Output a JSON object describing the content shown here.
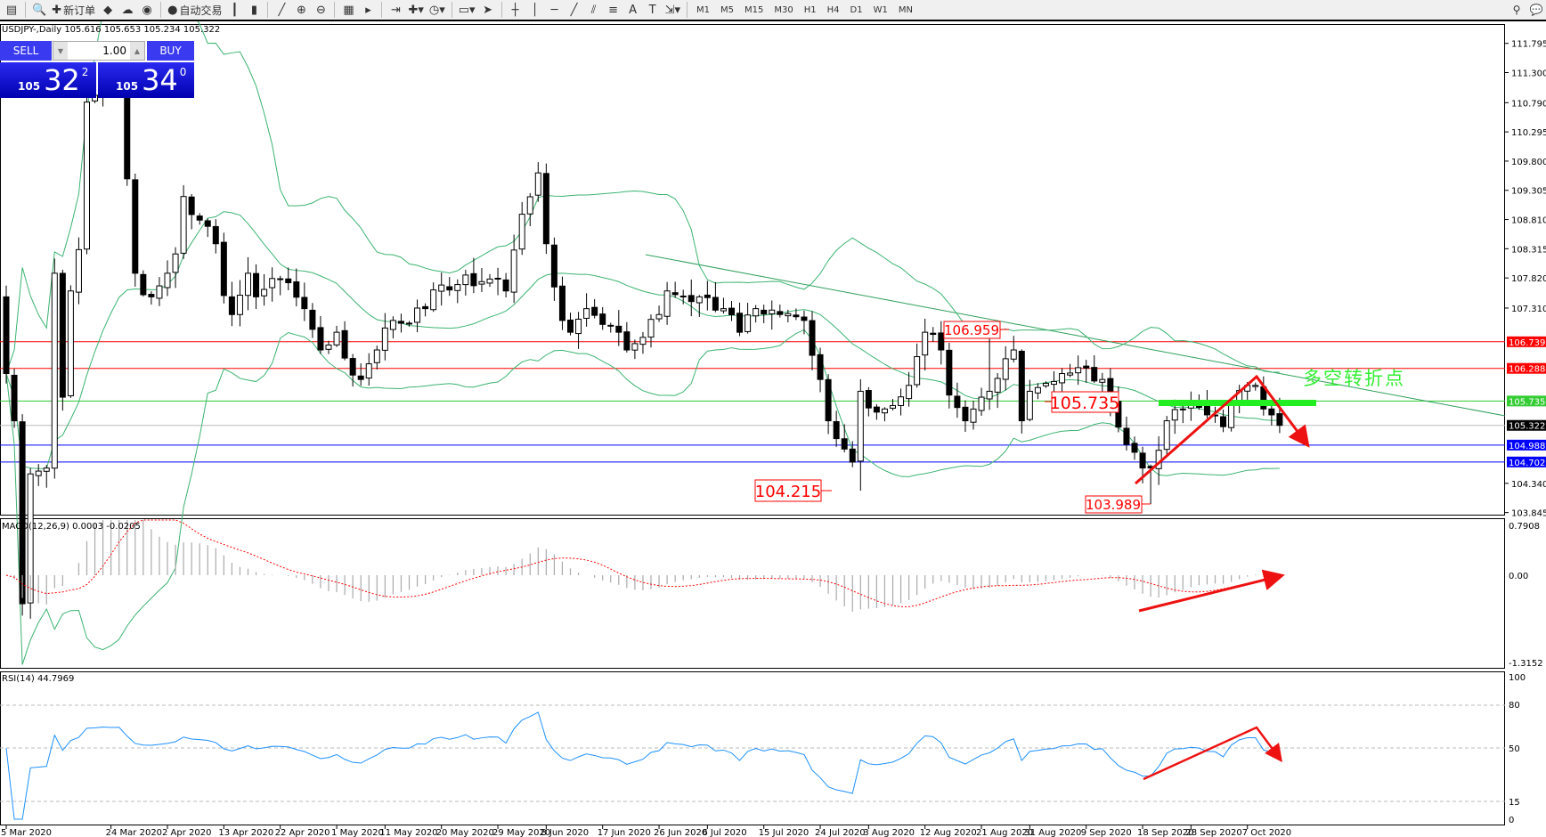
{
  "toolbar": {
    "new_order": "新订单",
    "auto_trading": "自动交易",
    "icons": [
      "chart-window-icon",
      "zoom-doc-icon",
      "new-order-icon",
      "gold-icon",
      "signals-icon",
      "radio-icon",
      "auto-trading-icon",
      "bar-chart-icon",
      "candle-chart-icon",
      "line-chart-icon",
      "zoom-in-icon",
      "zoom-out-icon",
      "tile-icon",
      "autoscroll-icon",
      "chart-shift-icon",
      "indicators-icon",
      "periods-icon",
      "templates-icon",
      "cursor-icon",
      "crosshair-icon",
      "vertical-line-icon",
      "horizontal-line-icon",
      "trendline-icon",
      "equidistant-channel-icon",
      "fibo-icon",
      "text-icon",
      "text-label-icon",
      "arrows-icon"
    ],
    "timeframes": [
      "M1",
      "M5",
      "M15",
      "M30",
      "H1",
      "H4",
      "D1",
      "W1",
      "MN"
    ],
    "search_icon": "search-icon",
    "chat_icon": "chat-icon"
  },
  "symbol_info": "USDJPY-,Daily  105.616 105.653 105.234 105.322",
  "one_click": {
    "sell_label": "SELL",
    "buy_label": "BUY",
    "lot": "1.00",
    "sell_big": "105",
    "sell_pips": "32",
    "sell_frac": "2",
    "buy_big": "105",
    "buy_pips": "34",
    "buy_frac": "0",
    "sell_color": "#0000c8",
    "buy_color": "#0000c8"
  },
  "chart": {
    "price_ticks": [
      "111.795",
      "111.300",
      "110.790",
      "110.295",
      "109.800",
      "109.305",
      "108.810",
      "108.315",
      "107.820",
      "107.310",
      "104.340",
      "103.845"
    ],
    "levels": [
      {
        "value": "106.739",
        "color": "#ff0000"
      },
      {
        "value": "106.288",
        "color": "#ff0000"
      },
      {
        "value": "105.735",
        "color": "#33cc33"
      },
      {
        "value": "105.322",
        "color": "#000000"
      },
      {
        "value": "104.988",
        "color": "#0000ff"
      },
      {
        "value": "104.702",
        "color": "#0000ff"
      }
    ],
    "annotations": {
      "high_label": "106.959",
      "mid_label": "105.735",
      "low1_label": "104.215",
      "low2_label": "103.989",
      "turning_point": "多空转折点"
    },
    "marked_extremes": [
      {
        "date": "2020-07-31",
        "low": 104.215
      },
      {
        "date": "2020-09-21",
        "low": 103.989
      },
      {
        "date": "2020-08-24",
        "high": 106.959
      }
    ],
    "price_keypoints": [
      [
        "2020-03-05",
        106.2
      ],
      [
        "2020-03-06",
        105.4
      ],
      [
        "2020-03-09",
        102.3
      ],
      [
        "2020-03-10",
        104.5
      ],
      [
        "2020-03-12",
        104.6
      ],
      [
        "2020-03-13",
        107.9
      ],
      [
        "2020-03-16",
        105.8
      ],
      [
        "2020-03-17",
        107.6
      ],
      [
        "2020-03-18",
        108.3
      ],
      [
        "2020-03-19",
        110.8
      ],
      [
        "2020-03-23",
        111.2
      ],
      [
        "2020-03-25",
        111.2
      ],
      [
        "2020-03-26",
        109.5
      ],
      [
        "2020-03-27",
        107.9
      ],
      [
        "2020-03-31",
        107.5
      ],
      [
        "2020-04-02",
        107.9
      ],
      [
        "2020-04-06",
        109.2
      ],
      [
        "2020-04-08",
        108.8
      ],
      [
        "2020-04-10",
        108.4
      ],
      [
        "2020-04-14",
        107.2
      ],
      [
        "2020-04-16",
        107.9
      ],
      [
        "2020-04-17",
        107.5
      ],
      [
        "2020-04-22",
        107.8
      ],
      [
        "2020-04-27",
        107.3
      ],
      [
        "2020-04-29",
        106.6
      ],
      [
        "2020-05-01",
        106.9
      ],
      [
        "2020-05-06",
        106.1
      ],
      [
        "2020-05-08",
        106.6
      ],
      [
        "2020-05-12",
        107.1
      ],
      [
        "2020-05-18",
        107.3
      ],
      [
        "2020-05-20",
        107.7
      ],
      [
        "2020-05-29",
        107.8
      ],
      [
        "2020-06-01",
        107.6
      ],
      [
        "2020-06-03",
        108.9
      ],
      [
        "2020-06-05",
        109.6
      ],
      [
        "2020-06-08",
        108.4
      ],
      [
        "2020-06-10",
        107.1
      ],
      [
        "2020-06-11",
        106.9
      ],
      [
        "2020-06-15",
        107.3
      ],
      [
        "2020-06-19",
        106.9
      ],
      [
        "2020-06-22",
        106.6
      ],
      [
        "2020-06-26",
        107.2
      ],
      [
        "2020-06-29",
        107.6
      ],
      [
        "2020-07-03",
        107.5
      ],
      [
        "2020-07-08",
        107.3
      ],
      [
        "2020-07-10",
        106.9
      ],
      [
        "2020-07-14",
        107.3
      ],
      [
        "2020-07-22",
        107.1
      ],
      [
        "2020-07-24",
        106.1
      ],
      [
        "2020-07-27",
        105.4
      ],
      [
        "2020-07-30",
        104.7
      ],
      [
        "2020-07-31",
        105.9
      ],
      [
        "2020-08-05",
        105.6
      ],
      [
        "2020-08-10",
        106.0
      ],
      [
        "2020-08-12",
        106.9
      ],
      [
        "2020-08-14",
        106.6
      ],
      [
        "2020-08-19",
        105.4
      ],
      [
        "2020-08-21",
        105.8
      ],
      [
        "2020-08-24",
        105.9
      ],
      [
        "2020-08-27",
        106.6
      ],
      [
        "2020-08-28",
        105.4
      ],
      [
        "2020-08-31",
        105.9
      ],
      [
        "2020-09-04",
        106.2
      ],
      [
        "2020-09-08",
        106.3
      ],
      [
        "2020-09-11",
        106.1
      ],
      [
        "2020-09-14",
        105.7
      ],
      [
        "2020-09-16",
        105.0
      ],
      [
        "2020-09-18",
        104.6
      ],
      [
        "2020-09-21",
        104.6
      ],
      [
        "2020-09-22",
        104.9
      ],
      [
        "2020-09-23",
        105.4
      ],
      [
        "2020-09-25",
        105.6
      ],
      [
        "2020-09-30",
        105.5
      ],
      [
        "2020-10-02",
        105.3
      ],
      [
        "2020-10-05",
        105.7
      ],
      [
        "2020-10-07",
        106.0
      ],
      [
        "2020-10-08",
        106.0
      ],
      [
        "2020-10-09",
        105.6
      ],
      [
        "2020-10-12",
        105.5
      ],
      [
        "2020-10-13",
        105.322
      ]
    ]
  },
  "macd": {
    "label": "MACD(12,26,9) 0.0003 -0.0205",
    "ticks": [
      "0.7908",
      "0.00",
      "-1.3152"
    ]
  },
  "rsi": {
    "label": "RSI(14) 44.7969",
    "ticks": [
      "100",
      "80",
      "50",
      "15",
      "0"
    ]
  },
  "x_axis": [
    "5 Mar 2020",
    "24 Mar 2020",
    "2 Apr 2020",
    "13 Apr 2020",
    "22 Apr 2020",
    "1 May 2020",
    "11 May 2020",
    "20 May 2020",
    "29 May 2020",
    "8 Jun 2020",
    "17 Jun 2020",
    "26 Jun 2020",
    "6 Jul 2020",
    "15 Jul 2020",
    "24 Jul 2020",
    "3 Aug 2020",
    "12 Aug 2020",
    "21 Aug 2020",
    "31 Aug 2020",
    "9 Sep 2020",
    "18 Sep 2020",
    "28 Sep 2020",
    "7 Oct 2020"
  ]
}
